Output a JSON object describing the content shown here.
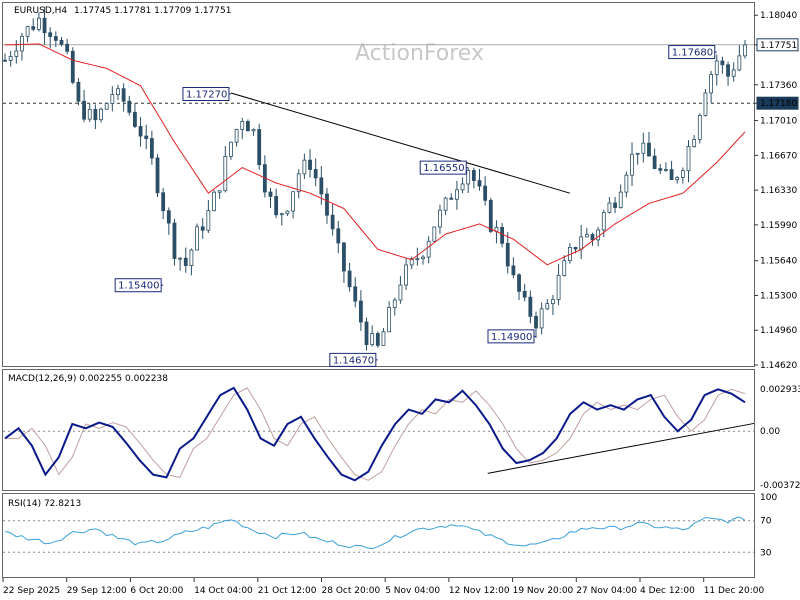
{
  "watermark": "ActionForex",
  "header": {
    "symbol_timeframe": "EURUSD,H4",
    "ohlc": "1.17745 1.17781 1.17709 1.17751",
    "macd_label": "MACD(12,26,9) 0.002255 0.002238",
    "rsi_label": "RSI(14) 72.8213"
  },
  "colors": {
    "candle": "#2b4f66",
    "ma": "#e02020",
    "macd": "#0a1a8a",
    "macd_signal": "#c0a0a0",
    "rsi": "#3aa0d8",
    "grid": "#888888",
    "callout_border": "#1a2a7a",
    "price_tag_bg": "#1a3a5a"
  },
  "chart_data": [
    {
      "type": "candlestick",
      "panel": "price",
      "ylim": [
        1.1462,
        1.1815
      ],
      "y_ticks": [
        "1.18040",
        "1.17751",
        "1.17360",
        "1.17180",
        "1.17010",
        "1.16670",
        "1.16330",
        "1.15990",
        "1.15640",
        "1.15300",
        "1.14960",
        "1.14620"
      ],
      "x_ticks": [
        "22 Sep 2025",
        "29 Sep 12:00",
        "6 Oct 20:00",
        "14 Oct 04:00",
        "21 Oct 12:00",
        "28 Oct 20:00",
        "5 Nov 04:00",
        "12 Nov 12:00",
        "19 Nov 20:00",
        "27 Nov 04:00",
        "4 Dec 12:00",
        "11 Dec 20:00"
      ],
      "current_price": 1.17751,
      "dashed_level": 1.1718,
      "close_path": [
        [
          0,
          1.176
        ],
        [
          3,
          1.1785
        ],
        [
          6,
          1.18
        ],
        [
          9,
          1.1785
        ],
        [
          11,
          1.176
        ],
        [
          13,
          1.1715
        ],
        [
          16,
          1.17
        ],
        [
          19,
          1.1728
        ],
        [
          21,
          1.172
        ],
        [
          24,
          1.169
        ],
        [
          26,
          1.166
        ],
        [
          28,
          1.1618
        ],
        [
          30,
          1.1575
        ],
        [
          32,
          1.156
        ],
        [
          34,
          1.159
        ],
        [
          36,
          1.161
        ],
        [
          38,
          1.164
        ],
        [
          40,
          1.168
        ],
        [
          42,
          1.1705
        ],
        [
          44,
          1.169
        ],
        [
          46,
          1.164
        ],
        [
          48,
          1.1605
        ],
        [
          50,
          1.162
        ],
        [
          52,
          1.165
        ],
        [
          54,
          1.166
        ],
        [
          56,
          1.163
        ],
        [
          58,
          1.159
        ],
        [
          60,
          1.1555
        ],
        [
          62,
          1.152
        ],
        [
          64,
          1.149
        ],
        [
          66,
          1.1478
        ],
        [
          68,
          1.151
        ],
        [
          70,
          1.1545
        ],
        [
          72,
          1.156
        ],
        [
          74,
          1.1575
        ],
        [
          76,
          1.16
        ],
        [
          78,
          1.1618
        ],
        [
          80,
          1.164
        ],
        [
          82,
          1.1655
        ],
        [
          84,
          1.163
        ],
        [
          86,
          1.16
        ],
        [
          88,
          1.1585
        ],
        [
          90,
          1.1545
        ],
        [
          92,
          1.152
        ],
        [
          94,
          1.1505
        ],
        [
          96,
          1.152
        ],
        [
          98,
          1.1545
        ],
        [
          100,
          1.157
        ],
        [
          102,
          1.159
        ],
        [
          104,
          1.1585
        ],
        [
          106,
          1.161
        ],
        [
          108,
          1.1625
        ],
        [
          110,
          1.1655
        ],
        [
          112,
          1.1675
        ],
        [
          114,
          1.1665
        ],
        [
          116,
          1.165
        ],
        [
          118,
          1.164
        ],
        [
          120,
          1.166
        ],
        [
          122,
          1.169
        ],
        [
          124,
          1.1735
        ],
        [
          126,
          1.176
        ],
        [
          128,
          1.1745
        ],
        [
          130,
          1.1765
        ],
        [
          131,
          1.1775
        ]
      ],
      "ma_path": [
        [
          0,
          1.1775
        ],
        [
          6,
          1.1776
        ],
        [
          12,
          1.176
        ],
        [
          18,
          1.1752
        ],
        [
          24,
          1.1735
        ],
        [
          30,
          1.168
        ],
        [
          36,
          1.163
        ],
        [
          42,
          1.1655
        ],
        [
          48,
          1.164
        ],
        [
          54,
          1.163
        ],
        [
          60,
          1.1615
        ],
        [
          66,
          1.1575
        ],
        [
          72,
          1.1565
        ],
        [
          78,
          1.159
        ],
        [
          84,
          1.16
        ],
        [
          90,
          1.1585
        ],
        [
          96,
          1.156
        ],
        [
          102,
          1.1575
        ],
        [
          108,
          1.16
        ],
        [
          114,
          1.162
        ],
        [
          120,
          1.163
        ],
        [
          126,
          1.166
        ],
        [
          131,
          1.169
        ]
      ],
      "trendline": [
        [
          40,
          1.1728
        ],
        [
          100,
          1.163
        ]
      ],
      "callouts": [
        {
          "label": "1.15400",
          "x": 28,
          "y": 1.154,
          "side": "left"
        },
        {
          "label": "1.17270",
          "x": 40,
          "y": 1.1727,
          "side": "left"
        },
        {
          "label": "1.14670",
          "x": 66,
          "y": 1.1467,
          "side": "left"
        },
        {
          "label": "1.16550",
          "x": 82,
          "y": 1.1655,
          "side": "left"
        },
        {
          "label": "1.14900",
          "x": 94,
          "y": 1.149,
          "side": "left"
        },
        {
          "label": "1.17680",
          "x": 126,
          "y": 1.1768,
          "side": "left"
        }
      ]
    },
    {
      "type": "line",
      "panel": "macd",
      "ylim": [
        -0.004,
        0.0032
      ],
      "y_ticks": [
        "0.002933",
        "0.00",
        "-0.003724"
      ],
      "macd": [
        [
          0,
          -0.0005
        ],
        [
          2,
          0.0002
        ],
        [
          4,
          -0.001
        ],
        [
          6,
          -0.003
        ],
        [
          8,
          -0.0018
        ],
        [
          10,
          0.0005
        ],
        [
          12,
          0.0002
        ],
        [
          14,
          0.0006
        ],
        [
          16,
          0.0003
        ],
        [
          18,
          -0.0008
        ],
        [
          20,
          -0.002
        ],
        [
          22,
          -0.003
        ],
        [
          24,
          -0.0032
        ],
        [
          26,
          -0.0012
        ],
        [
          28,
          -0.0005
        ],
        [
          30,
          0.001
        ],
        [
          32,
          0.0025
        ],
        [
          34,
          0.003
        ],
        [
          36,
          0.0015
        ],
        [
          38,
          -0.0005
        ],
        [
          40,
          -0.001
        ],
        [
          42,
          0.0005
        ],
        [
          44,
          0.001
        ],
        [
          46,
          -0.0005
        ],
        [
          48,
          -0.0018
        ],
        [
          50,
          -0.003
        ],
        [
          52,
          -0.0034
        ],
        [
          54,
          -0.0028
        ],
        [
          56,
          -0.001
        ],
        [
          58,
          0.0005
        ],
        [
          60,
          0.0015
        ],
        [
          62,
          0.0012
        ],
        [
          64,
          0.0022
        ],
        [
          66,
          0.002
        ],
        [
          68,
          0.0028
        ],
        [
          70,
          0.0018
        ],
        [
          72,
          0.0005
        ],
        [
          74,
          -0.0012
        ],
        [
          76,
          -0.0022
        ],
        [
          78,
          -0.002
        ],
        [
          80,
          -0.0015
        ],
        [
          82,
          -0.0005
        ],
        [
          84,
          0.0012
        ],
        [
          86,
          0.002
        ],
        [
          88,
          0.0015
        ],
        [
          90,
          0.0018
        ],
        [
          92,
          0.0015
        ],
        [
          94,
          0.0022
        ],
        [
          96,
          0.0025
        ],
        [
          98,
          0.001
        ],
        [
          100,
          0.0
        ],
        [
          102,
          0.0008
        ],
        [
          104,
          0.0025
        ],
        [
          106,
          0.0029
        ],
        [
          108,
          0.0026
        ],
        [
          110,
          0.002
        ]
      ],
      "signal_offset": 2,
      "trendline": [
        [
          60,
          -0.0025
        ],
        [
          110,
          0.0004
        ]
      ]
    },
    {
      "type": "line",
      "panel": "rsi",
      "ylim": [
        0,
        100
      ],
      "y_ticks": [
        "100",
        "70",
        "30",
        "0"
      ],
      "levels": [
        70,
        30
      ],
      "rsi": [
        [
          0,
          55
        ],
        [
          4,
          48
        ],
        [
          8,
          42
        ],
        [
          12,
          55
        ],
        [
          16,
          60
        ],
        [
          20,
          48
        ],
        [
          24,
          40
        ],
        [
          28,
          45
        ],
        [
          32,
          55
        ],
        [
          36,
          62
        ],
        [
          40,
          72
        ],
        [
          44,
          58
        ],
        [
          48,
          50
        ],
        [
          52,
          55
        ],
        [
          56,
          45
        ],
        [
          60,
          40
        ],
        [
          64,
          35
        ],
        [
          68,
          45
        ],
        [
          72,
          58
        ],
        [
          76,
          62
        ],
        [
          80,
          66
        ],
        [
          84,
          55
        ],
        [
          88,
          45
        ],
        [
          92,
          38
        ],
        [
          96,
          42
        ],
        [
          100,
          55
        ],
        [
          104,
          62
        ],
        [
          108,
          60
        ],
        [
          112,
          66
        ],
        [
          116,
          62
        ],
        [
          120,
          58
        ],
        [
          124,
          72
        ],
        [
          128,
          70
        ],
        [
          131,
          72.8
        ]
      ]
    }
  ]
}
